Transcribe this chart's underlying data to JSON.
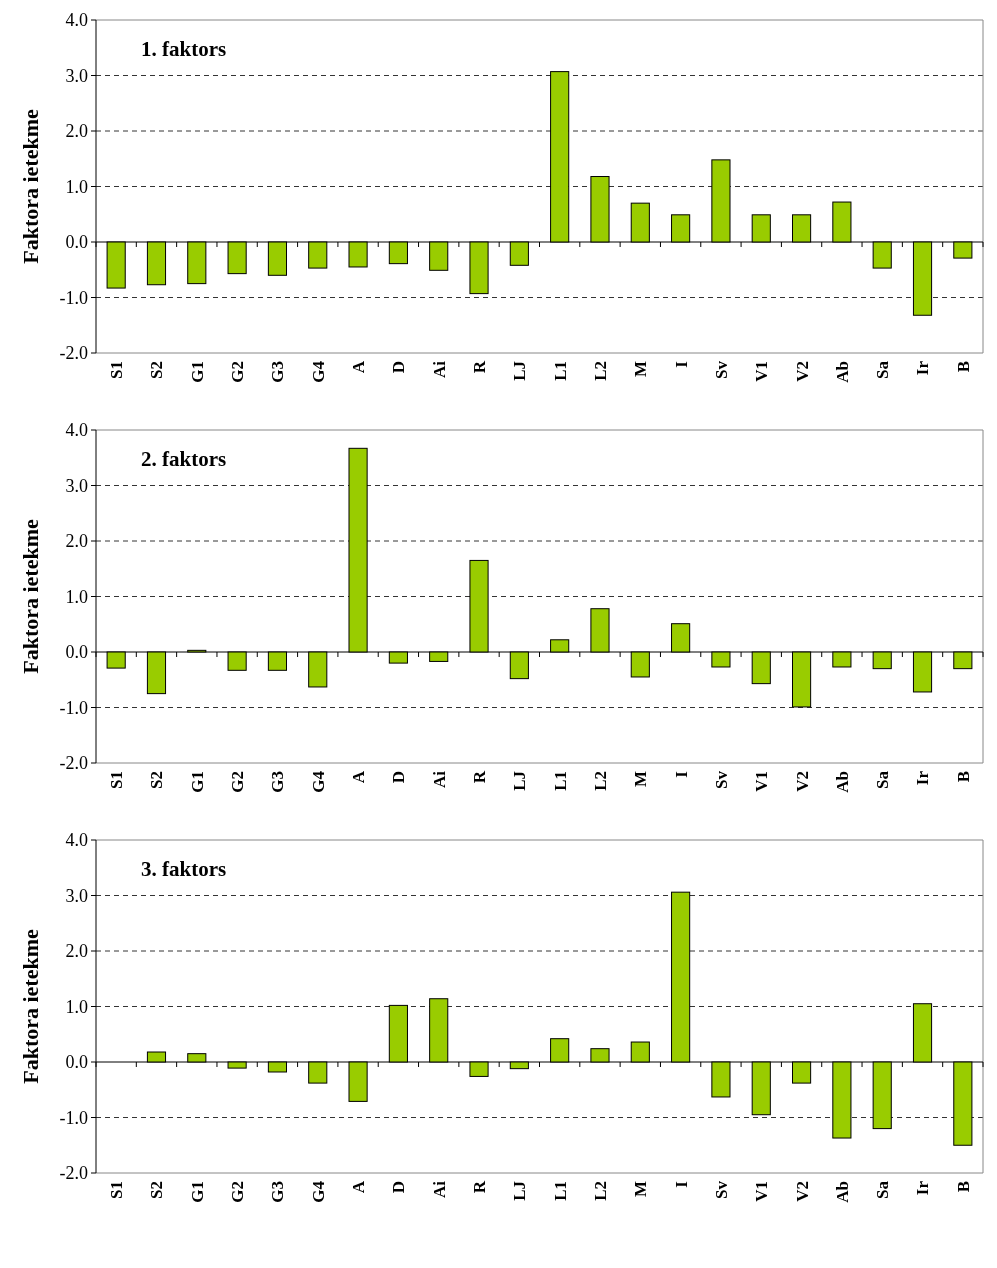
{
  "chart_data": [
    {
      "type": "bar",
      "title": "1. faktors",
      "ylabel": "Faktora ietekme",
      "categories": [
        "S1",
        "S2",
        "G1",
        "G2",
        "G3",
        "G4",
        "A",
        "D",
        "Ai",
        "R",
        "LJ",
        "L1",
        "L2",
        "M",
        "I",
        "Sv",
        "V1",
        "V2",
        "Ab",
        "Sa",
        "Ir",
        "B"
      ],
      "values": [
        -0.83,
        -0.77,
        -0.75,
        -0.57,
        -0.6,
        -0.47,
        -0.45,
        -0.39,
        -0.51,
        -0.93,
        -0.42,
        3.07,
        1.18,
        0.7,
        0.49,
        1.48,
        0.49,
        0.49,
        0.72,
        -0.47,
        -1.32,
        -0.29
      ],
      "color": "#99cc00",
      "ylim": [
        -2,
        4
      ],
      "yticks": [
        {
          "value": -2,
          "label": "-2.0"
        },
        {
          "value": -1,
          "label": "-1.0"
        },
        {
          "value": 0,
          "label": "0.0"
        },
        {
          "value": 1,
          "label": "1.0"
        },
        {
          "value": 2,
          "label": "2.0"
        },
        {
          "value": 3,
          "label": "3.0"
        },
        {
          "value": 4,
          "label": "4.0"
        }
      ],
      "grid": "y"
    },
    {
      "type": "bar",
      "title": "2. faktors",
      "ylabel": "Faktora ietekme",
      "categories": [
        "S1",
        "S2",
        "G1",
        "G2",
        "G3",
        "G4",
        "A",
        "D",
        "Ai",
        "R",
        "LJ",
        "L1",
        "L2",
        "M",
        "I",
        "Sv",
        "V1",
        "V2",
        "Ab",
        "Sa",
        "Ir",
        "B"
      ],
      "values": [
        -0.29,
        -0.75,
        0.03,
        -0.33,
        -0.33,
        -0.63,
        3.67,
        -0.2,
        -0.17,
        1.65,
        -0.48,
        0.22,
        0.78,
        -0.45,
        0.51,
        -0.27,
        -0.57,
        -0.99,
        -0.27,
        -0.3,
        -0.72,
        -0.3
      ],
      "color": "#99cc00",
      "ylim": [
        -2,
        4
      ],
      "yticks": [
        {
          "value": -2,
          "label": "-2.0"
        },
        {
          "value": -1,
          "label": "-1.0"
        },
        {
          "value": 0,
          "label": "0.0"
        },
        {
          "value": 1,
          "label": "1.0"
        },
        {
          "value": 2,
          "label": "2.0"
        },
        {
          "value": 3,
          "label": "3.0"
        },
        {
          "value": 4,
          "label": "4.0"
        }
      ],
      "grid": "y"
    },
    {
      "type": "bar",
      "title": "3. faktors",
      "ylabel": "Faktora ietekme",
      "categories": [
        "S1",
        "S2",
        "G1",
        "G2",
        "G3",
        "G4",
        "A",
        "D",
        "Ai",
        "R",
        "LJ",
        "L1",
        "L2",
        "M",
        "I",
        "Sv",
        "V1",
        "V2",
        "Ab",
        "Sa",
        "Ir",
        "B"
      ],
      "values": [
        0,
        0.18,
        0.15,
        -0.11,
        -0.18,
        -0.38,
        -0.71,
        1.02,
        1.14,
        -0.26,
        -0.12,
        0.42,
        0.24,
        0.36,
        3.06,
        -0.63,
        -0.95,
        -0.38,
        -1.37,
        -1.2,
        1.05,
        -1.5
      ],
      "color": "#99cc00",
      "ylim": [
        -2,
        4
      ],
      "yticks": [
        {
          "value": -2,
          "label": "-2.0"
        },
        {
          "value": -1,
          "label": "-1.0"
        },
        {
          "value": 0,
          "label": "0.0"
        },
        {
          "value": 1,
          "label": "1.0"
        },
        {
          "value": 2,
          "label": "2.0"
        },
        {
          "value": 3,
          "label": "3.0"
        },
        {
          "value": 4,
          "label": "4.0"
        }
      ],
      "grid": "y"
    }
  ]
}
